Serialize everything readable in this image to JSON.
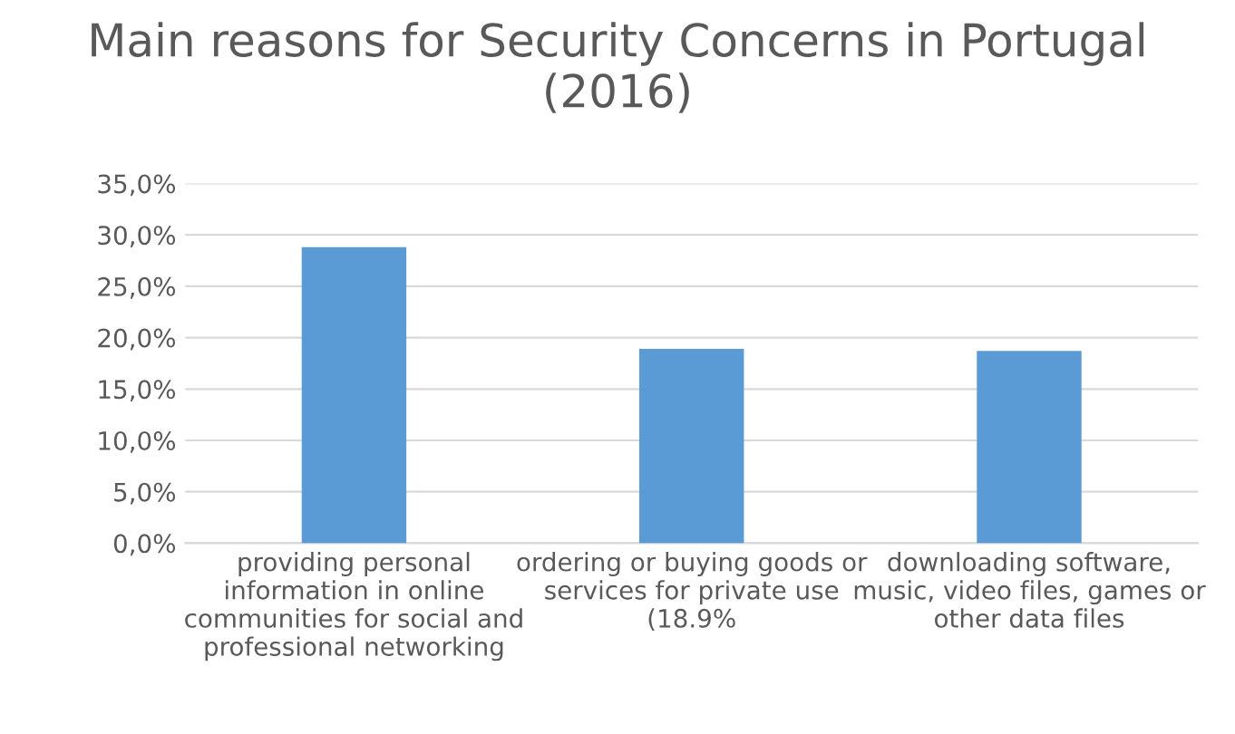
{
  "chart_data": {
    "type": "bar",
    "title": "Main reasons for Security Concerns in Portugal\n(2016)",
    "categories": [
      "providing personal\ninformation in online\ncommunities for social and\nprofessional networking",
      "ordering or buying goods or\nservices for private use\n(18.9%",
      "downloading software,\nmusic, video files, games or\nother data files"
    ],
    "values": [
      28.8,
      18.9,
      18.7
    ],
    "color": "#5b9bd5",
    "ylim": [
      0,
      35
    ],
    "yticks": [
      {
        "value": 0,
        "label": "0,0%"
      },
      {
        "value": 5,
        "label": "5,0%"
      },
      {
        "value": 10,
        "label": "10,0%"
      },
      {
        "value": 15,
        "label": "15,0%"
      },
      {
        "value": 20,
        "label": "20,0%"
      },
      {
        "value": 25,
        "label": "25,0%"
      },
      {
        "value": 30,
        "label": "30,0%"
      },
      {
        "value": 35,
        "label": "35,0%"
      }
    ],
    "grid": "y"
  }
}
